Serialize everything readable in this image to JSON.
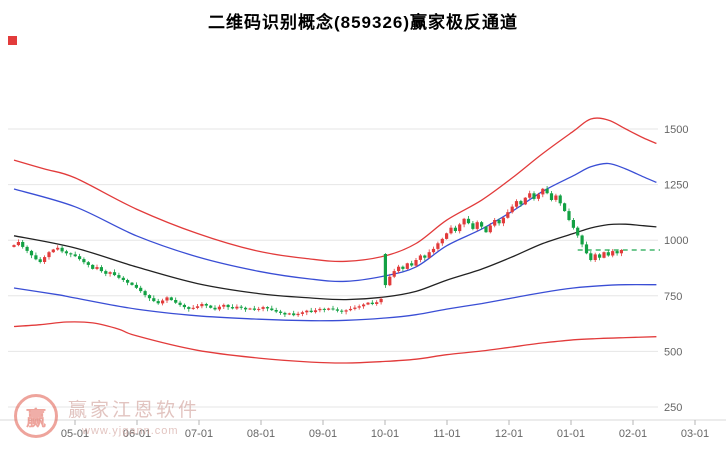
{
  "page": {
    "title": "二维码识别概念(859326)赢家极反通道"
  },
  "watermark": {
    "brand": "赢家江恩软件",
    "url": "www.yjgann.com",
    "logo_char": "赢"
  },
  "chart_data": {
    "type": "candlestick",
    "title": "二维码识别概念(859326)赢家极反通道",
    "subtitle": "",
    "legend_position": "none",
    "grid": "horizontal",
    "y_ticks": [
      1500,
      1250,
      1000,
      750,
      500,
      250
    ],
    "ylim": [
      180,
      1600
    ],
    "x_ticks": [
      "05-01",
      "06-01",
      "07-01",
      "08-01",
      "09-01",
      "10-01",
      "11-01",
      "12-01",
      "01-01",
      "02-01",
      "03-01"
    ],
    "candles_open_close": [
      [
        970,
        978
      ],
      [
        978,
        992
      ],
      [
        992,
        970
      ],
      [
        970,
        952
      ],
      [
        952,
        932
      ],
      [
        932,
        914
      ],
      [
        914,
        902
      ],
      [
        902,
        924
      ],
      [
        924,
        946
      ],
      [
        946,
        958
      ],
      [
        958,
        966
      ],
      [
        966,
        950
      ],
      [
        950,
        941
      ],
      [
        941,
        936
      ],
      [
        936,
        928
      ],
      [
        928,
        915
      ],
      [
        915,
        901
      ],
      [
        901,
        889
      ],
      [
        889,
        871
      ],
      [
        871,
        879
      ],
      [
        879,
        861
      ],
      [
        861,
        849
      ],
      [
        849,
        856
      ],
      [
        856,
        843
      ],
      [
        843,
        831
      ],
      [
        831,
        821
      ],
      [
        821,
        809
      ],
      [
        809,
        799
      ],
      [
        799,
        786
      ],
      [
        786,
        771
      ],
      [
        771,
        753
      ],
      [
        753,
        739
      ],
      [
        739,
        726
      ],
      [
        726,
        716
      ],
      [
        716,
        729
      ],
      [
        729,
        743
      ],
      [
        743,
        731
      ],
      [
        731,
        719
      ],
      [
        719,
        709
      ],
      [
        709,
        699
      ],
      [
        699,
        691
      ],
      [
        691,
        696
      ],
      [
        696,
        703
      ],
      [
        703,
        713
      ],
      [
        713,
        706
      ],
      [
        706,
        696
      ],
      [
        696,
        689
      ],
      [
        689,
        701
      ],
      [
        701,
        709
      ],
      [
        709,
        699
      ],
      [
        699,
        693
      ],
      [
        693,
        701
      ],
      [
        701,
        696
      ],
      [
        696,
        689
      ],
      [
        689,
        693
      ],
      [
        693,
        687
      ],
      [
        687,
        691
      ],
      [
        691,
        699
      ],
      [
        699,
        693
      ],
      [
        693,
        686
      ],
      [
        686,
        679
      ],
      [
        679,
        673
      ],
      [
        673,
        666
      ],
      [
        666,
        671
      ],
      [
        671,
        663
      ],
      [
        663,
        669
      ],
      [
        669,
        676
      ],
      [
        676,
        683
      ],
      [
        683,
        677
      ],
      [
        677,
        685
      ],
      [
        685,
        691
      ],
      [
        691,
        687
      ],
      [
        687,
        693
      ],
      [
        693,
        689
      ],
      [
        689,
        683
      ],
      [
        683,
        679
      ],
      [
        679,
        685
      ],
      [
        685,
        691
      ],
      [
        691,
        697
      ],
      [
        697,
        703
      ],
      [
        703,
        711
      ],
      [
        711,
        719
      ],
      [
        719,
        713
      ],
      [
        713,
        721
      ],
      [
        721,
        736
      ],
      [
        938,
        798
      ],
      [
        798,
        836
      ],
      [
        836,
        861
      ],
      [
        861,
        881
      ],
      [
        881,
        871
      ],
      [
        871,
        896
      ],
      [
        896,
        886
      ],
      [
        886,
        911
      ],
      [
        911,
        931
      ],
      [
        931,
        921
      ],
      [
        921,
        946
      ],
      [
        946,
        961
      ],
      [
        961,
        986
      ],
      [
        986,
        1006
      ],
      [
        1006,
        1031
      ],
      [
        1031,
        1056
      ],
      [
        1056,
        1041
      ],
      [
        1041,
        1071
      ],
      [
        1071,
        1096
      ],
      [
        1096,
        1076
      ],
      [
        1076,
        1051
      ],
      [
        1051,
        1081
      ],
      [
        1081,
        1061
      ],
      [
        1061,
        1036
      ],
      [
        1036,
        1066
      ],
      [
        1066,
        1091
      ],
      [
        1091,
        1076
      ],
      [
        1076,
        1101
      ],
      [
        1101,
        1126
      ],
      [
        1126,
        1151
      ],
      [
        1151,
        1176
      ],
      [
        1176,
        1161
      ],
      [
        1161,
        1191
      ],
      [
        1191,
        1211
      ],
      [
        1211,
        1186
      ],
      [
        1186,
        1206
      ],
      [
        1206,
        1231
      ],
      [
        1231,
        1211
      ],
      [
        1211,
        1181
      ],
      [
        1181,
        1201
      ],
      [
        1201,
        1166
      ],
      [
        1166,
        1131
      ],
      [
        1131,
        1091
      ],
      [
        1091,
        1056
      ],
      [
        1056,
        1021
      ],
      [
        1021,
        981
      ],
      [
        981,
        941
      ],
      [
        941,
        911
      ],
      [
        911,
        936
      ],
      [
        936,
        921
      ],
      [
        921,
        946
      ],
      [
        946,
        931
      ],
      [
        931,
        951
      ],
      [
        951,
        941
      ],
      [
        941,
        956
      ]
    ],
    "bands": {
      "upper_red": [
        [
          0,
          1360
        ],
        [
          7,
          1320
        ],
        [
          14,
          1280
        ],
        [
          28,
          1140
        ],
        [
          42,
          1030
        ],
        [
          56,
          950
        ],
        [
          68,
          915
        ],
        [
          76,
          905
        ],
        [
          85,
          930
        ],
        [
          92,
          985
        ],
        [
          99,
          1090
        ],
        [
          107,
          1180
        ],
        [
          114,
          1280
        ],
        [
          121,
          1390
        ],
        [
          128,
          1490
        ],
        [
          132,
          1545
        ],
        [
          136,
          1540
        ],
        [
          140,
          1500
        ],
        [
          144,
          1460
        ],
        [
          147,
          1435
        ]
      ],
      "upper_blue": [
        [
          0,
          1230
        ],
        [
          14,
          1150
        ],
        [
          28,
          1020
        ],
        [
          42,
          925
        ],
        [
          56,
          860
        ],
        [
          68,
          825
        ],
        [
          76,
          815
        ],
        [
          85,
          840
        ],
        [
          92,
          880
        ],
        [
          99,
          975
        ],
        [
          107,
          1050
        ],
        [
          114,
          1130
        ],
        [
          121,
          1220
        ],
        [
          128,
          1290
        ],
        [
          132,
          1330
        ],
        [
          136,
          1345
        ],
        [
          140,
          1320
        ],
        [
          144,
          1285
        ],
        [
          147,
          1260
        ]
      ],
      "middle_black": [
        [
          0,
          1020
        ],
        [
          14,
          965
        ],
        [
          28,
          880
        ],
        [
          42,
          805
        ],
        [
          56,
          760
        ],
        [
          68,
          740
        ],
        [
          76,
          733
        ],
        [
          85,
          745
        ],
        [
          92,
          770
        ],
        [
          99,
          820
        ],
        [
          107,
          870
        ],
        [
          114,
          925
        ],
        [
          121,
          985
        ],
        [
          128,
          1030
        ],
        [
          132,
          1055
        ],
        [
          136,
          1070
        ],
        [
          140,
          1072
        ],
        [
          144,
          1065
        ],
        [
          147,
          1060
        ]
      ],
      "lower_blue": [
        [
          0,
          785
        ],
        [
          10,
          755
        ],
        [
          14,
          740
        ],
        [
          28,
          690
        ],
        [
          42,
          660
        ],
        [
          56,
          645
        ],
        [
          68,
          638
        ],
        [
          76,
          640
        ],
        [
          85,
          650
        ],
        [
          92,
          665
        ],
        [
          99,
          690
        ],
        [
          107,
          715
        ],
        [
          114,
          740
        ],
        [
          121,
          765
        ],
        [
          128,
          785
        ],
        [
          134,
          795
        ],
        [
          140,
          800
        ],
        [
          147,
          800
        ]
      ],
      "lower_red": [
        [
          0,
          612
        ],
        [
          6,
          620
        ],
        [
          12,
          632
        ],
        [
          18,
          628
        ],
        [
          24,
          600
        ],
        [
          28,
          570
        ],
        [
          42,
          505
        ],
        [
          56,
          470
        ],
        [
          68,
          452
        ],
        [
          76,
          448
        ],
        [
          85,
          455
        ],
        [
          92,
          465
        ],
        [
          99,
          485
        ],
        [
          107,
          502
        ],
        [
          114,
          520
        ],
        [
          121,
          538
        ],
        [
          128,
          552
        ],
        [
          134,
          558
        ],
        [
          140,
          562
        ],
        [
          147,
          566
        ]
      ]
    },
    "last_price_line": {
      "value": 956,
      "style": "dashed",
      "from_index": 129,
      "color": "#1fa84f"
    },
    "colors": {
      "up": "#e23b3b",
      "down": "#13a144",
      "band_red": "#e23b3b",
      "band_blue": "#3a4ed5",
      "band_mid": "#222222",
      "grid": "#e6e6e6",
      "axis_line": "#d8d8d8",
      "tick": "#b5b5b5",
      "axis_text": "#666666"
    }
  }
}
